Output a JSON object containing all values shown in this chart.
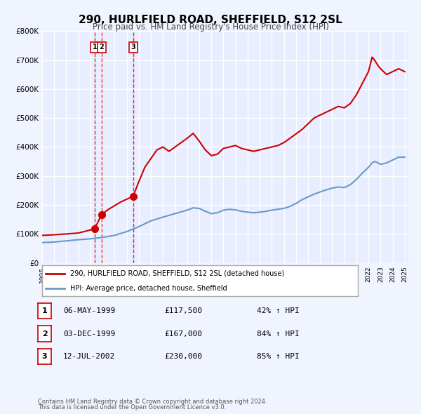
{
  "title": "290, HURLFIELD ROAD, SHEFFIELD, S12 2SL",
  "subtitle": "Price paid vs. HM Land Registry's House Price Index (HPI)",
  "ylabel": "",
  "ylim": [
    0,
    800000
  ],
  "yticks": [
    0,
    100000,
    200000,
    300000,
    400000,
    500000,
    600000,
    700000,
    800000
  ],
  "ytick_labels": [
    "£0",
    "£100K",
    "£200K",
    "£300K",
    "£400K",
    "£500K",
    "£600K",
    "£700K",
    "£800K"
  ],
  "xlim_start": 1995.0,
  "xlim_end": 2025.3,
  "background_color": "#f0f4ff",
  "plot_bg_color": "#e8eeff",
  "grid_color": "#ffffff",
  "red_line_color": "#cc0000",
  "blue_line_color": "#6699cc",
  "sale_marker_color": "#cc0000",
  "dashed_line_color": "#cc0000",
  "legend_box_color": "#ffffff",
  "legend_border_color": "#aaaaaa",
  "table_border_color": "#cc0000",
  "sale_points": [
    {
      "label": "1",
      "date": 1999.35,
      "price": 117500,
      "date_str": "06-MAY-1999",
      "price_str": "£117,500",
      "hpi_str": "42% ↑ HPI"
    },
    {
      "label": "2",
      "date": 1999.92,
      "price": 167000,
      "date_str": "03-DEC-1999",
      "price_str": "£167,000",
      "hpi_str": "84% ↑ HPI"
    },
    {
      "label": "3",
      "date": 2002.53,
      "price": 230000,
      "date_str": "12-JUL-2002",
      "price_str": "£230,000",
      "hpi_str": "85% ↑ HPI"
    }
  ],
  "legend_line1": "290, HURLFIELD ROAD, SHEFFIELD, S12 2SL (detached house)",
  "legend_line2": "HPI: Average price, detached house, Sheffield",
  "footer_line1": "Contains HM Land Registry data © Crown copyright and database right 2024.",
  "footer_line2": "This data is licensed under the Open Government Licence v3.0."
}
